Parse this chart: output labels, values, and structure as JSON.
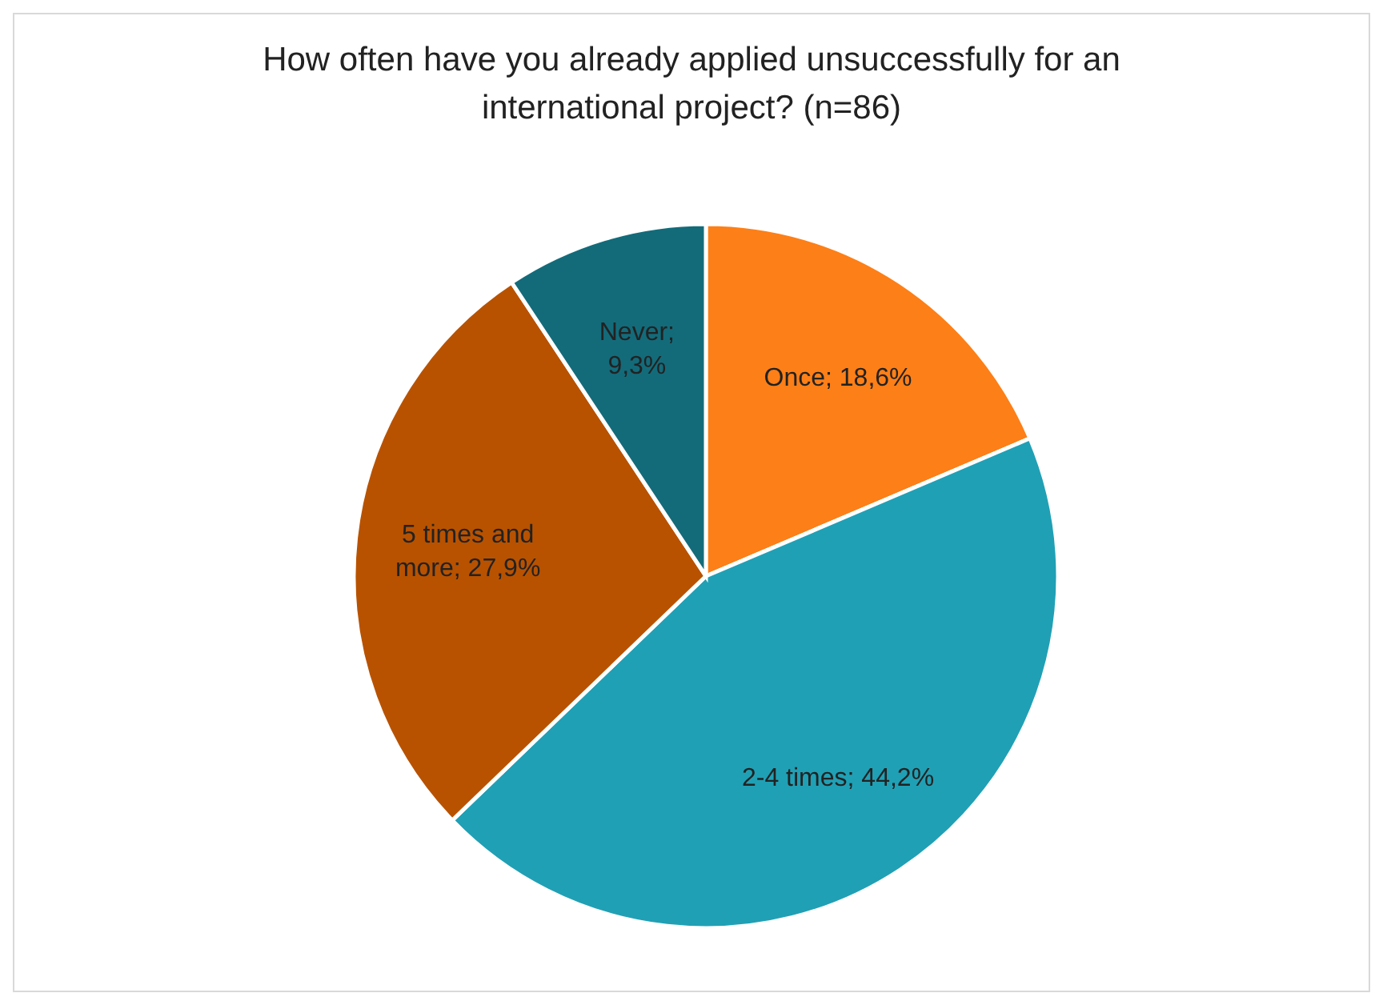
{
  "chart_data": {
    "type": "pie",
    "title": "How often have you already applied unsuccessfully for an international project? (n=86)",
    "categories": [
      null,
      null,
      null,
      null
    ],
    "values": [
      18.6,
      44.2,
      27.9,
      9.3
    ],
    "colors": [
      "#fd7f17",
      "#20a0b5",
      "#b85200",
      "#136b7a"
    ],
    "value_labels": [
      "Once; 18,6%",
      "2-4 times; 44,2%",
      "5 times and more; 27,9%",
      "Never; 9,3%"
    ],
    "legend": false
  }
}
